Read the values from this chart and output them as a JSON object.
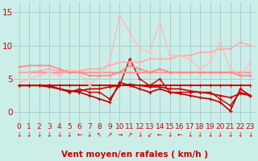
{
  "bg_color": "#cceee8",
  "grid_color": "#aacccc",
  "xlabel": "Vent moyen/en rafales ( km/h )",
  "xlabel_color": "#cc0000",
  "xlabel_fontsize": 7.5,
  "yticks": [
    0,
    5,
    10,
    15
  ],
  "ylim": [
    -1.5,
    16.5
  ],
  "xlim": [
    -0.5,
    23.5
  ],
  "tick_color": "#cc0000",
  "tick_fontsize": 6.5,
  "series": [
    {
      "y": [
        4,
        4,
        4,
        4,
        4,
        4,
        4,
        4,
        4,
        4,
        4,
        4,
        4,
        4,
        4,
        4,
        4,
        4,
        4,
        4,
        4,
        4,
        4,
        4
      ],
      "color": "#cc0000",
      "lw": 1.4,
      "marker": "+"
    },
    {
      "y": [
        4,
        4,
        4,
        3.8,
        3.5,
        3.2,
        3.2,
        3.5,
        3.5,
        3.8,
        4.0,
        4.2,
        4.0,
        3.8,
        3.8,
        3.5,
        3.5,
        3.2,
        3.0,
        2.8,
        2.5,
        2.2,
        2.8,
        2.5
      ],
      "color": "#cc0000",
      "lw": 1.2,
      "marker": "+"
    },
    {
      "y": [
        4,
        4,
        4,
        4,
        3.5,
        3.0,
        3.5,
        3.0,
        3.0,
        2.0,
        4.0,
        8.0,
        5.0,
        4.0,
        5.0,
        3.0,
        3.0,
        3.0,
        3.0,
        3.0,
        2.0,
        1.0,
        3.0,
        2.5
      ],
      "color": "#cc0000",
      "lw": 1.0,
      "marker": "+"
    },
    {
      "y": [
        4,
        4,
        4,
        4,
        3.5,
        3.2,
        3.0,
        2.5,
        2.0,
        1.5,
        4.5,
        4.0,
        3.5,
        3.0,
        3.5,
        3.0,
        2.8,
        2.5,
        2.2,
        2.0,
        1.5,
        0.2,
        3.5,
        2.5
      ],
      "color": "#bb0000",
      "lw": 1.2,
      "marker": "+"
    },
    {
      "y": [
        6,
        6,
        6,
        6,
        6,
        6,
        6,
        6,
        6,
        6,
        6,
        6,
        6,
        6,
        6,
        6,
        6,
        6,
        6,
        6,
        6,
        6,
        6,
        6
      ],
      "color": "#ff9999",
      "lw": 1.5,
      "marker": "+"
    },
    {
      "y": [
        6,
        6,
        6.2,
        6.5,
        6.2,
        6.0,
        6.2,
        6.5,
        6.5,
        7.0,
        7.5,
        7.5,
        7.5,
        8.0,
        8.0,
        8.0,
        8.5,
        8.5,
        9.0,
        9.0,
        9.5,
        9.5,
        10.5,
        10.0
      ],
      "color": "#ffaaaa",
      "lw": 1.2,
      "marker": "+"
    },
    {
      "y": [
        4.5,
        5.0,
        5.5,
        6.0,
        5.5,
        6.5,
        6.0,
        4.0,
        5.5,
        7.5,
        14.5,
        12.0,
        9.5,
        9.0,
        13.5,
        8.5,
        8.5,
        8.0,
        6.5,
        7.5,
        10.5,
        6.5,
        5.5,
        7.5
      ],
      "color": "#ffbbbb",
      "lw": 1.0,
      "marker": "+"
    },
    {
      "y": [
        6.8,
        7.0,
        7.0,
        7.0,
        6.5,
        6.0,
        6.0,
        5.5,
        5.5,
        5.5,
        6.0,
        7.0,
        6.5,
        6.0,
        6.5,
        6.0,
        6.0,
        6.0,
        6.0,
        6.0,
        6.0,
        6.0,
        5.5,
        5.5
      ],
      "color": "#ff8888",
      "lw": 1.2,
      "marker": "+"
    }
  ],
  "wind_arrows": [
    "↓",
    "↓",
    "↓",
    "↓",
    "↓",
    "↓",
    "←",
    "↓",
    "↖",
    "↗",
    "→",
    "↗",
    "↓",
    "↙",
    "←",
    "↓",
    "←",
    "↓",
    "↓",
    "↓",
    "↓",
    "↓",
    "↓",
    "↓"
  ]
}
